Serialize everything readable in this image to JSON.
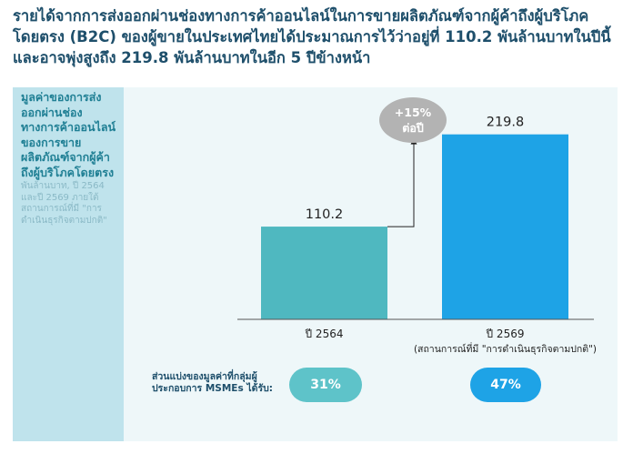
{
  "headline": "รายได้จากการส่งออกผ่านช่องทางการค้าออนไลน์ในการขายผลิตภัณฑ์จากผู้ค้าถึงผู้บริโภคโดยตรง (B2C) ของผู้ขายในประเทศไทยได้ประมาณการไว้ว่าอยู่ที่ 110.2 พันล้านบาทในปีนี้ และอาจพุ่งสูงถึง 219.8 พันล้านบาทในอีก 5 ปีข้างหน้า",
  "sidebar": {
    "metric_title": "มูลค่าของการส่งออกผ่านช่องทางการค้าออนไลน์ของการขายผลิตภัณฑ์จากผู้ค้าถึงผู้บริโภคโดยตรง",
    "metric_sub": "พันล้านบาท, ปี 2564 และปี 2569 ภายใต้สถานการณ์ที่มี \"การดำเนินธุรกิจตามปกติ\""
  },
  "chart_data": {
    "type": "bar",
    "categories": [
      "ปี 2564",
      "ปี 2569"
    ],
    "category_notes": [
      "",
      "(สถานการณ์ที่มี \"การดำเนินธุรกิจตามปกติ\")"
    ],
    "values": [
      110.2,
      219.8
    ],
    "value_labels": [
      "110.2",
      "219.8"
    ],
    "bar_colors": [
      "#4fb8c0",
      "#1ea3e6"
    ],
    "growth_annotation": [
      "+15%",
      "ต่อปี"
    ],
    "ylim": [
      0,
      240
    ],
    "grid": false,
    "legend": "none"
  },
  "share": {
    "label": "ส่วนแบ่งของมูลค่าที่กลุ่มผู้ประกอบการ MSMEs ได้รับ:",
    "values": [
      "31%",
      "47%"
    ],
    "colors": [
      "#5ec3c9",
      "#1ea3e6"
    ]
  },
  "colors": {
    "headline": "#1e4f6b",
    "sidebar_bg": "#bfe3ec",
    "panel_bg": "#eef7f9",
    "growth_bubble": "#b3b3b3"
  }
}
